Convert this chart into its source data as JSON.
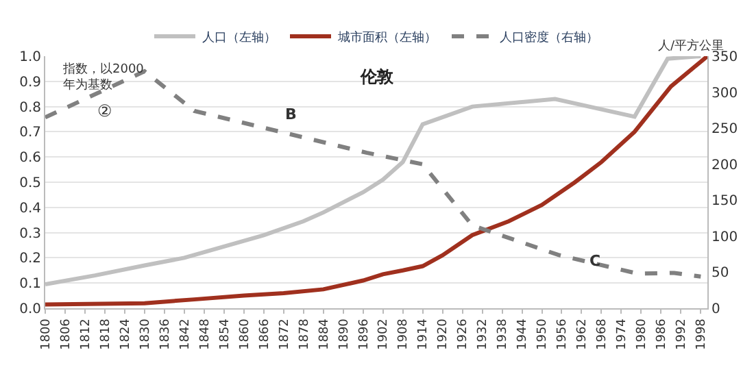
{
  "chart_data": {
    "type": "line",
    "title": "伦敦",
    "y2label": "人/平方公里",
    "annotations": [
      "指数，以2000年为基数",
      "②",
      "B",
      "C"
    ],
    "series": [
      {
        "name": "人口（左轴）",
        "color": "#c0c0c0",
        "x": [
          1800,
          1815,
          1830,
          1842,
          1854,
          1866,
          1878,
          1884,
          1890,
          1896,
          1902,
          1908,
          1914,
          1929,
          1954,
          1978,
          1988,
          1998
        ],
        "values": [
          0.095,
          0.13,
          0.17,
          0.2,
          0.245,
          0.29,
          0.345,
          0.38,
          0.42,
          0.46,
          0.51,
          0.58,
          0.73,
          0.8,
          0.83,
          0.76,
          0.99,
          1.0
        ]
      },
      {
        "name": "城市面积（左轴）",
        "color": "#a0301e",
        "x": [
          1800,
          1830,
          1845,
          1860,
          1872,
          1884,
          1896,
          1902,
          1908,
          1914,
          1920,
          1929,
          1940,
          1950,
          1960,
          1968,
          1978,
          1989,
          2000
        ],
        "values": [
          0.015,
          0.02,
          0.035,
          0.05,
          0.06,
          0.075,
          0.11,
          0.135,
          0.15,
          0.167,
          0.21,
          0.29,
          0.345,
          0.41,
          0.5,
          0.58,
          0.7,
          0.88,
          1.0
        ]
      },
      {
        "name": "人口密度（右轴）",
        "color": "#808080",
        "axis": "y2",
        "line_style": "dashed",
        "x": [
          1800,
          1830,
          1845,
          1897,
          1914,
          1929,
          1955,
          1979,
          1990,
          1998
        ],
        "values": [
          265,
          329,
          274,
          216,
          200,
          115,
          74,
          48,
          49,
          44
        ]
      }
    ],
    "xlim": [
      1800,
      2000
    ],
    "xticks": [
      1800,
      1806,
      1812,
      1818,
      1824,
      1830,
      1836,
      1842,
      1848,
      1854,
      1860,
      1866,
      1872,
      1878,
      1884,
      1890,
      1896,
      1902,
      1908,
      1914,
      1920,
      1926,
      1932,
      1938,
      1944,
      1950,
      1956,
      1962,
      1968,
      1974,
      1980,
      1986,
      1992,
      1998
    ],
    "ylim": [
      0,
      1.0
    ],
    "yticks": [
      {
        "value": 0,
        "label": "0.0"
      },
      0.1,
      0.2,
      0.3,
      0.4,
      0.5,
      0.6,
      0.7,
      0.8,
      0.9,
      {
        "value": 1.0,
        "label": "1.0"
      }
    ],
    "y2lim": [
      0,
      350
    ],
    "y2ticks": [
      0,
      50,
      100,
      150,
      200,
      250,
      300,
      350
    ],
    "grid": "y",
    "legend": "top",
    "marker": "none"
  }
}
